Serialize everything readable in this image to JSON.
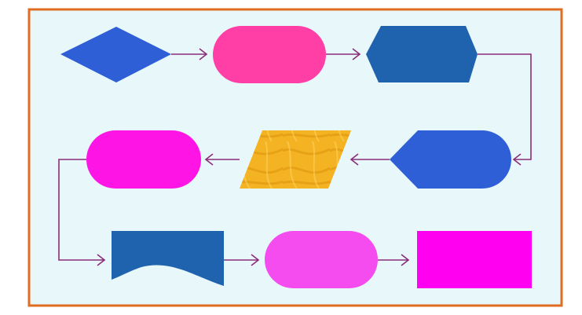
{
  "colors": {
    "frame_border": "#e06c22",
    "background": "#e8f8fa",
    "connector": "#8a2d7a",
    "royal_blue": "#2f5fd6",
    "hot_pink": "#ff3fa6",
    "steel_blue": "#1f62ae",
    "magenta": "#ff14e6",
    "gold": "#f4b322",
    "orchid": "#f44cee",
    "fuchsia": "#ff00f0"
  },
  "diagram": {
    "type": "flowchart",
    "text_labels": [],
    "rows": [
      {
        "row": "top",
        "direction": "left-to-right",
        "shapes": [
          {
            "kind": "decision-diamond",
            "color": "royal_blue"
          },
          {
            "kind": "terminator-pill",
            "color": "hot_pink"
          },
          {
            "kind": "preparation-hexagon",
            "color": "steel_blue"
          }
        ]
      },
      {
        "row": "middle",
        "direction": "right-to-left",
        "shapes": [
          {
            "kind": "display-shape",
            "color": "royal_blue"
          },
          {
            "kind": "data-parallelogram",
            "color": "gold"
          },
          {
            "kind": "terminator-pill",
            "color": "magenta"
          }
        ]
      },
      {
        "row": "bottom",
        "direction": "left-to-right",
        "shapes": [
          {
            "kind": "document-shape",
            "color": "steel_blue"
          },
          {
            "kind": "terminator-pill",
            "color": "orchid"
          },
          {
            "kind": "process-rectangle",
            "color": "fuchsia"
          }
        ]
      }
    ],
    "connections": [
      {
        "from": "decision-diamond",
        "to": "terminator-pill-top"
      },
      {
        "from": "terminator-pill-top",
        "to": "preparation-hexagon"
      },
      {
        "from": "preparation-hexagon",
        "to": "display-shape"
      },
      {
        "from": "display-shape",
        "to": "data-parallelogram"
      },
      {
        "from": "data-parallelogram",
        "to": "terminator-pill-middle"
      },
      {
        "from": "terminator-pill-middle",
        "to": "document-shape"
      },
      {
        "from": "document-shape",
        "to": "terminator-pill-bottom"
      },
      {
        "from": "terminator-pill-bottom",
        "to": "process-rectangle"
      }
    ]
  }
}
